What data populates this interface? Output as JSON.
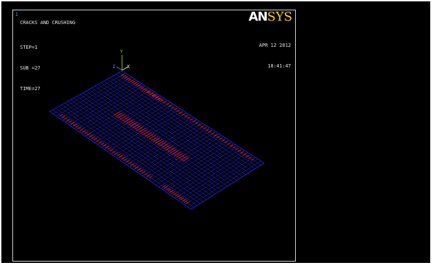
{
  "window": {
    "number": "1",
    "title": "CRACKS AND CRUSHING"
  },
  "solution": {
    "step": "STEP=1",
    "sub": "SUB =27",
    "time": "TIME=27"
  },
  "timestamp": {
    "date": "APR 12 2012",
    "time": "18:41:47"
  },
  "logo": {
    "an": "AN",
    "sys": "SYS"
  },
  "triad": {
    "x": "X",
    "y": "Y",
    "z": "Z"
  },
  "colors": {
    "background": "#000000",
    "mesh": "#2020d0",
    "cracks": "#e0202a",
    "logo_sys": "#ffd400",
    "triad_y": "#8fd400",
    "text": "#e6e6e6"
  }
}
